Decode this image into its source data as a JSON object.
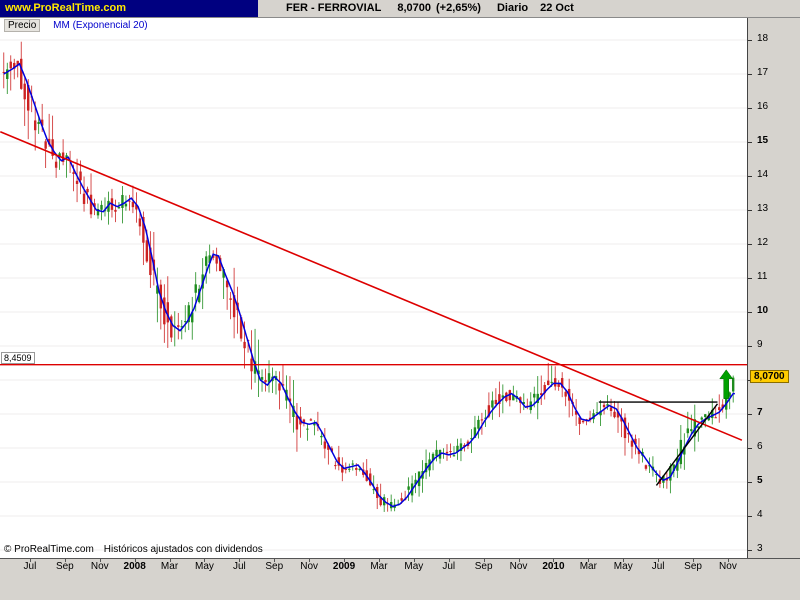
{
  "header": {
    "site": "www.ProRealTime.com",
    "symbol": "FER - FERROVIAL",
    "price": "8,0700",
    "change": "(+2,65%)",
    "period": "Diario",
    "date": "22 Oct"
  },
  "chart_header": {
    "price_label": "Precio",
    "indicator_label": "MM (Exponencial 20)"
  },
  "footer": {
    "copyright": "© ProRealTime.com",
    "note": "Históricos ajustados con dividendos"
  },
  "price_axis": {
    "min": 3,
    "max": 18,
    "bold_ticks": [
      15,
      10,
      7,
      5
    ],
    "current_price_label": "8,0700",
    "level_label": "8,4509"
  },
  "time_axis": {
    "labels": [
      {
        "t": "Jul",
        "m": 1
      },
      {
        "t": "Sep",
        "m": 3
      },
      {
        "t": "Nov",
        "m": 5
      },
      {
        "t": "2008",
        "m": 7,
        "b": 1
      },
      {
        "t": "Mar",
        "m": 9
      },
      {
        "t": "May",
        "m": 11
      },
      {
        "t": "Jul",
        "m": 13
      },
      {
        "t": "Sep",
        "m": 15
      },
      {
        "t": "Nov",
        "m": 17
      },
      {
        "t": "2009",
        "m": 19,
        "b": 1
      },
      {
        "t": "Mar",
        "m": 21
      },
      {
        "t": "May",
        "m": 23
      },
      {
        "t": "Jul",
        "m": 25
      },
      {
        "t": "Sep",
        "m": 27
      },
      {
        "t": "Nov",
        "m": 29
      },
      {
        "t": "2010",
        "m": 31,
        "b": 1
      },
      {
        "t": "Mar",
        "m": 33
      },
      {
        "t": "May",
        "m": 35
      },
      {
        "t": "Jul",
        "m": 37
      },
      {
        "t": "Sep",
        "m": 39
      },
      {
        "t": "Nov",
        "m": 41
      }
    ]
  },
  "chart_data": {
    "type": "candlestick",
    "instrument": "FER - FERROVIAL",
    "timeframe": "Diario",
    "last_date": "22 Oct",
    "last_price": 8.07,
    "change_pct": "+2,65%",
    "ylim": [
      3,
      18
    ],
    "x_span_label": [
      "Jun 2007",
      "Nov 2010"
    ],
    "level_line": {
      "price": 8.4509,
      "label": "8,4509",
      "color": "#dd0000"
    },
    "trendline": {
      "m1": -0.7,
      "p1": 15.3,
      "m2": 41.8,
      "p2": 6.23,
      "color": "#dd0000"
    },
    "pattern_lines": [
      {
        "m1": 33.6,
        "p1": 7.35,
        "m2": 40.4,
        "p2": 7.35
      },
      {
        "m1": 36.9,
        "p1": 4.9,
        "m2": 40.4,
        "p2": 7.3
      }
    ],
    "arrow": {
      "m": 40.9,
      "p_from": 7.45,
      "p_to": 8.3,
      "color": "#00a000"
    },
    "ema": {
      "name": "MM (Exponencial 20)",
      "color": "#0000dd",
      "path": [
        [
          -0.5,
          17.0
        ],
        [
          0.0,
          17.15
        ],
        [
          0.4,
          17.3
        ],
        [
          0.8,
          16.8
        ],
        [
          1.2,
          16.2
        ],
        [
          1.6,
          15.6
        ],
        [
          2.0,
          15.05
        ],
        [
          2.4,
          14.7
        ],
        [
          2.8,
          14.45
        ],
        [
          3.2,
          14.55
        ],
        [
          3.6,
          14.1
        ],
        [
          4.0,
          13.7
        ],
        [
          4.4,
          13.35
        ],
        [
          4.8,
          13.0
        ],
        [
          5.2,
          12.95
        ],
        [
          5.6,
          13.2
        ],
        [
          6.0,
          13.1
        ],
        [
          6.4,
          13.2
        ],
        [
          6.8,
          13.35
        ],
        [
          7.2,
          13.1
        ],
        [
          7.6,
          12.5
        ],
        [
          8.0,
          11.6
        ],
        [
          8.4,
          10.6
        ],
        [
          8.8,
          10.0
        ],
        [
          9.2,
          9.6
        ],
        [
          9.6,
          9.45
        ],
        [
          10.0,
          9.7
        ],
        [
          10.4,
          10.1
        ],
        [
          10.8,
          10.7
        ],
        [
          11.2,
          11.3
        ],
        [
          11.5,
          11.7
        ],
        [
          11.8,
          11.65
        ],
        [
          12.2,
          11.1
        ],
        [
          12.6,
          10.6
        ],
        [
          13.0,
          10.0
        ],
        [
          13.4,
          9.3
        ],
        [
          13.8,
          8.6
        ],
        [
          14.2,
          8.0
        ],
        [
          14.6,
          7.85
        ],
        [
          15.0,
          8.1
        ],
        [
          15.4,
          7.9
        ],
        [
          15.8,
          7.45
        ],
        [
          16.2,
          7.05
        ],
        [
          16.6,
          6.75
        ],
        [
          17.0,
          6.7
        ],
        [
          17.4,
          6.75
        ],
        [
          17.8,
          6.4
        ],
        [
          18.2,
          6.0
        ],
        [
          18.6,
          5.6
        ],
        [
          19.0,
          5.4
        ],
        [
          19.4,
          5.45
        ],
        [
          19.8,
          5.5
        ],
        [
          20.2,
          5.25
        ],
        [
          20.6,
          4.95
        ],
        [
          21.0,
          4.6
        ],
        [
          21.4,
          4.4
        ],
        [
          21.8,
          4.28
        ],
        [
          22.2,
          4.35
        ],
        [
          22.6,
          4.55
        ],
        [
          23.0,
          4.85
        ],
        [
          23.4,
          5.15
        ],
        [
          23.8,
          5.45
        ],
        [
          24.2,
          5.7
        ],
        [
          24.6,
          5.85
        ],
        [
          25.0,
          5.8
        ],
        [
          25.4,
          5.85
        ],
        [
          25.8,
          6.0
        ],
        [
          26.2,
          6.15
        ],
        [
          26.6,
          6.4
        ],
        [
          27.0,
          6.75
        ],
        [
          27.4,
          7.05
        ],
        [
          27.8,
          7.3
        ],
        [
          28.2,
          7.5
        ],
        [
          28.6,
          7.6
        ],
        [
          29.0,
          7.45
        ],
        [
          29.4,
          7.2
        ],
        [
          29.8,
          7.25
        ],
        [
          30.2,
          7.45
        ],
        [
          30.6,
          7.7
        ],
        [
          31.0,
          7.9
        ],
        [
          31.4,
          7.9
        ],
        [
          31.8,
          7.65
        ],
        [
          32.2,
          7.2
        ],
        [
          32.6,
          6.85
        ],
        [
          33.0,
          6.8
        ],
        [
          33.4,
          6.95
        ],
        [
          33.8,
          7.1
        ],
        [
          34.2,
          7.25
        ],
        [
          34.6,
          7.15
        ],
        [
          35.0,
          6.8
        ],
        [
          35.4,
          6.4
        ],
        [
          35.8,
          6.0
        ],
        [
          36.2,
          5.75
        ],
        [
          36.6,
          5.45
        ],
        [
          37.0,
          5.2
        ],
        [
          37.3,
          5.05
        ],
        [
          37.7,
          5.15
        ],
        [
          38.1,
          5.55
        ],
        [
          38.5,
          6.0
        ],
        [
          38.9,
          6.4
        ],
        [
          39.3,
          6.7
        ],
        [
          39.7,
          6.85
        ],
        [
          40.1,
          6.95
        ],
        [
          40.5,
          7.05
        ],
        [
          40.9,
          7.3
        ],
        [
          41.3,
          7.6
        ]
      ]
    },
    "candles": {
      "start": -0.5,
      "end": 41.3,
      "step": 0.2,
      "seed": 42,
      "up_color": "#1e8c1e",
      "down_color": "#cc2222",
      "vol_zones": [
        {
          "from": -0.6,
          "to": 1.4,
          "mult": 1.25
        },
        {
          "from": 7.6,
          "to": 9.6,
          "mult": 1.3
        },
        {
          "from": 13.6,
          "to": 17.2,
          "mult": 1.5
        },
        {
          "from": 20.4,
          "to": 22.4,
          "mult": 1.2
        },
        {
          "from": 27.2,
          "to": 31.6,
          "mult": 1.3
        }
      ]
    }
  }
}
